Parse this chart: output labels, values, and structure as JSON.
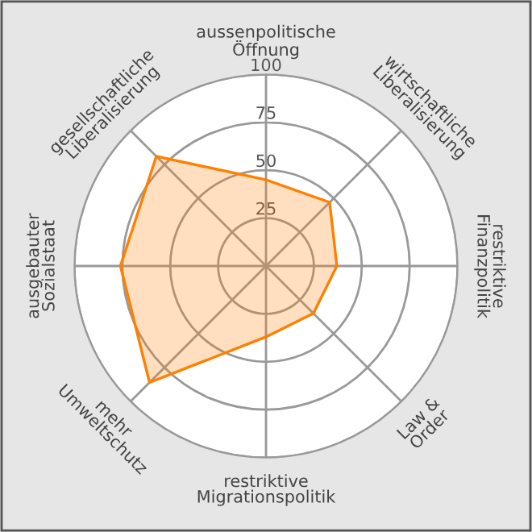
{
  "chart_data": {
    "type": "radar",
    "categories": [
      "aussenpolitische\nÖffnung",
      "wirtschaftliche\nLiberalisierung",
      "restriktive\nFinanzpolitik",
      "Law &\nOrder",
      "restriktive\nMigrationspolitik",
      "mehr\nUmweltschutz",
      "ausgebauter\nSozialstaat",
      "gesellschaftliche\nLiberalisierung"
    ],
    "series": [
      {
        "color": "#ff8000",
        "values": [
          45,
          47,
          37,
          35,
          37,
          86,
          76,
          81
        ]
      }
    ],
    "ylim": [
      0,
      100
    ],
    "yticks": [
      25,
      50,
      75,
      100
    ],
    "grid": true,
    "marker": "none"
  }
}
